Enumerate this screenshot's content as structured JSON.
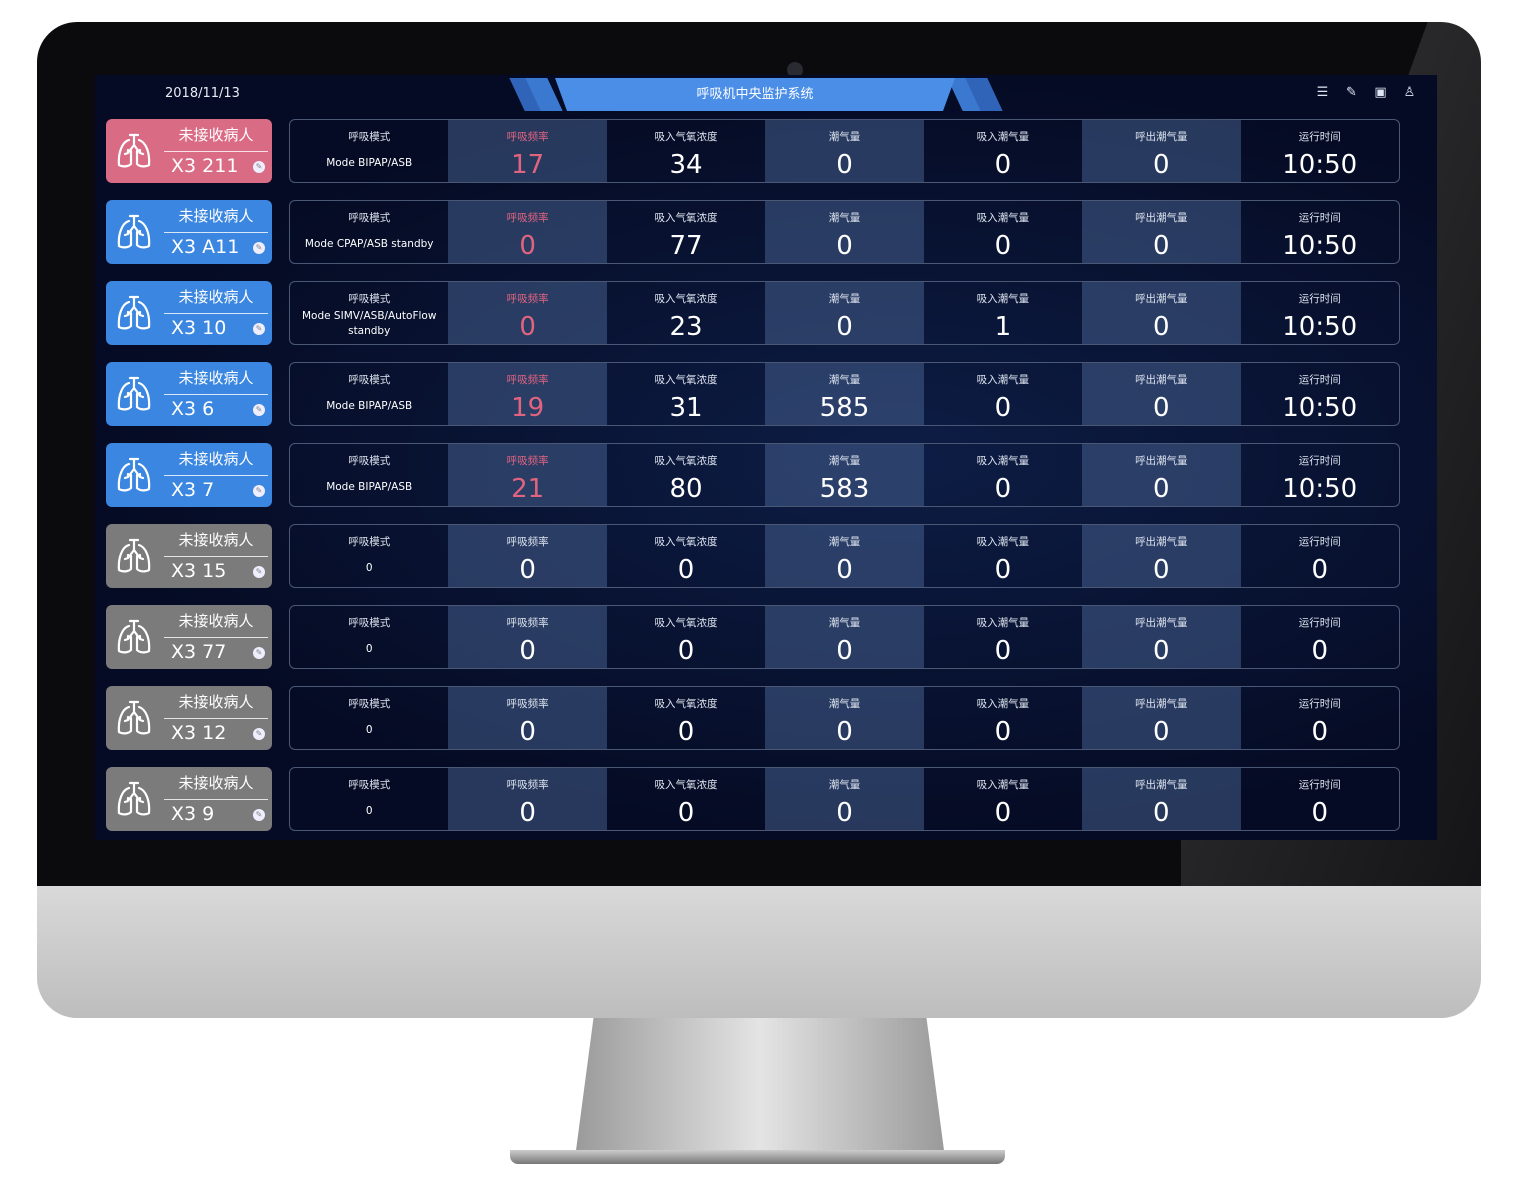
{
  "header": {
    "date": "2018/11/13",
    "title": "呼吸机中央监护系统",
    "icons": [
      "list-icon",
      "edit-icon",
      "layout-icon",
      "user-icon"
    ]
  },
  "colors": {
    "red": "#d96b84",
    "blue": "#3a86e0",
    "gray": "#7b7b7b",
    "alert": "#e06480"
  },
  "columns": [
    "呼吸模式",
    "呼吸频率",
    "吸入气氧浓度",
    "潮气量",
    "吸入潮气量",
    "呼出潮气量",
    "运行时间"
  ],
  "rows": [
    {
      "status": "red",
      "name": "未接收病人",
      "id": "X3 211",
      "alert": true,
      "values": [
        "Mode BIPAP/ASB",
        "17",
        "34",
        "0",
        "0",
        "0",
        "10:50"
      ]
    },
    {
      "status": "blue",
      "name": "未接收病人",
      "id": "X3 A11",
      "alert": true,
      "values": [
        "Mode CPAP/ASB standby",
        "0",
        "77",
        "0",
        "0",
        "0",
        "10:50"
      ]
    },
    {
      "status": "blue",
      "name": "未接收病人",
      "id": "X3 10",
      "alert": true,
      "values": [
        "Mode SIMV/ASB/AutoFlow standby",
        "0",
        "23",
        "0",
        "1",
        "0",
        "10:50"
      ]
    },
    {
      "status": "blue",
      "name": "未接收病人",
      "id": "X3 6",
      "alert": true,
      "values": [
        "Mode BIPAP/ASB",
        "19",
        "31",
        "585",
        "0",
        "0",
        "10:50"
      ]
    },
    {
      "status": "blue",
      "name": "未接收病人",
      "id": "X3 7",
      "alert": true,
      "values": [
        "Mode BIPAP/ASB",
        "21",
        "80",
        "583",
        "0",
        "0",
        "10:50"
      ]
    },
    {
      "status": "gray",
      "name": "未接收病人",
      "id": "X3 15",
      "alert": false,
      "values": [
        "0",
        "0",
        "0",
        "0",
        "0",
        "0",
        "0"
      ]
    },
    {
      "status": "gray",
      "name": "未接收病人",
      "id": "X3 77",
      "alert": false,
      "values": [
        "0",
        "0",
        "0",
        "0",
        "0",
        "0",
        "0"
      ]
    },
    {
      "status": "gray",
      "name": "未接收病人",
      "id": "X3 12",
      "alert": false,
      "values": [
        "0",
        "0",
        "0",
        "0",
        "0",
        "0",
        "0"
      ]
    },
    {
      "status": "gray",
      "name": "未接收病人",
      "id": "X3 9",
      "alert": false,
      "values": [
        "0",
        "0",
        "0",
        "0",
        "0",
        "0",
        "0"
      ]
    }
  ]
}
